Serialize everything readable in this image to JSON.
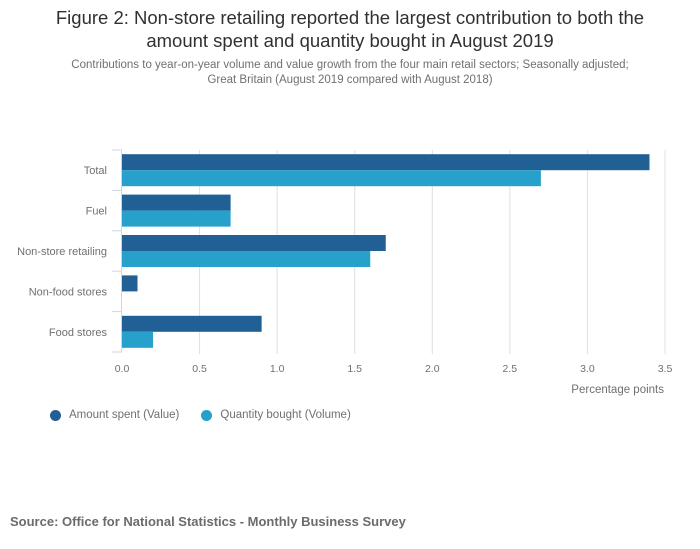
{
  "header": {
    "title_line1": "Figure 2: Non-store retailing reported the largest contribution to both the",
    "title_line2": "amount spent and quantity bought in August 2019",
    "subtitle_line1": "Contributions to year-on-year volume and value growth from the four main retail sectors; Seasonally adjusted;",
    "subtitle_line2": "Great Britain (August 2019 compared with August 2018)"
  },
  "chart_data": {
    "type": "bar",
    "orientation": "horizontal",
    "title": "Figure 2: Non-store retailing reported the largest contribution to both the amount spent and quantity bought in August 2019",
    "subtitle": "Contributions to year-on-year volume and value growth from the four main retail sectors; Seasonally adjusted; Great Britain (August 2019 compared with August 2018)",
    "categories": [
      "Total",
      "Fuel",
      "Non-store retailing",
      "Non-food stores",
      "Food stores"
    ],
    "series": [
      {
        "name": "Amount spent (Value)",
        "color": "#206095",
        "values": [
          3.4,
          0.7,
          1.7,
          0.1,
          0.9
        ]
      },
      {
        "name": "Quantity bought (Volume)",
        "color": "#27a0cc",
        "values": [
          2.7,
          0.7,
          1.6,
          0.0,
          0.2
        ]
      }
    ],
    "xlabel": "Percentage points",
    "ylabel": "",
    "xlim": [
      0,
      3.5
    ],
    "xticks": [
      "0.0",
      "0.5",
      "1.0",
      "1.5",
      "2.0",
      "2.5",
      "3.0",
      "3.5"
    ],
    "grid": true,
    "legend_position": "bottom-left"
  },
  "legend": {
    "items": [
      {
        "label": "Amount spent (Value)",
        "color": "#206095"
      },
      {
        "label": "Quantity bought (Volume)",
        "color": "#27a0cc"
      }
    ]
  },
  "source": "Source: Office for National Statistics - Monthly Business Survey"
}
